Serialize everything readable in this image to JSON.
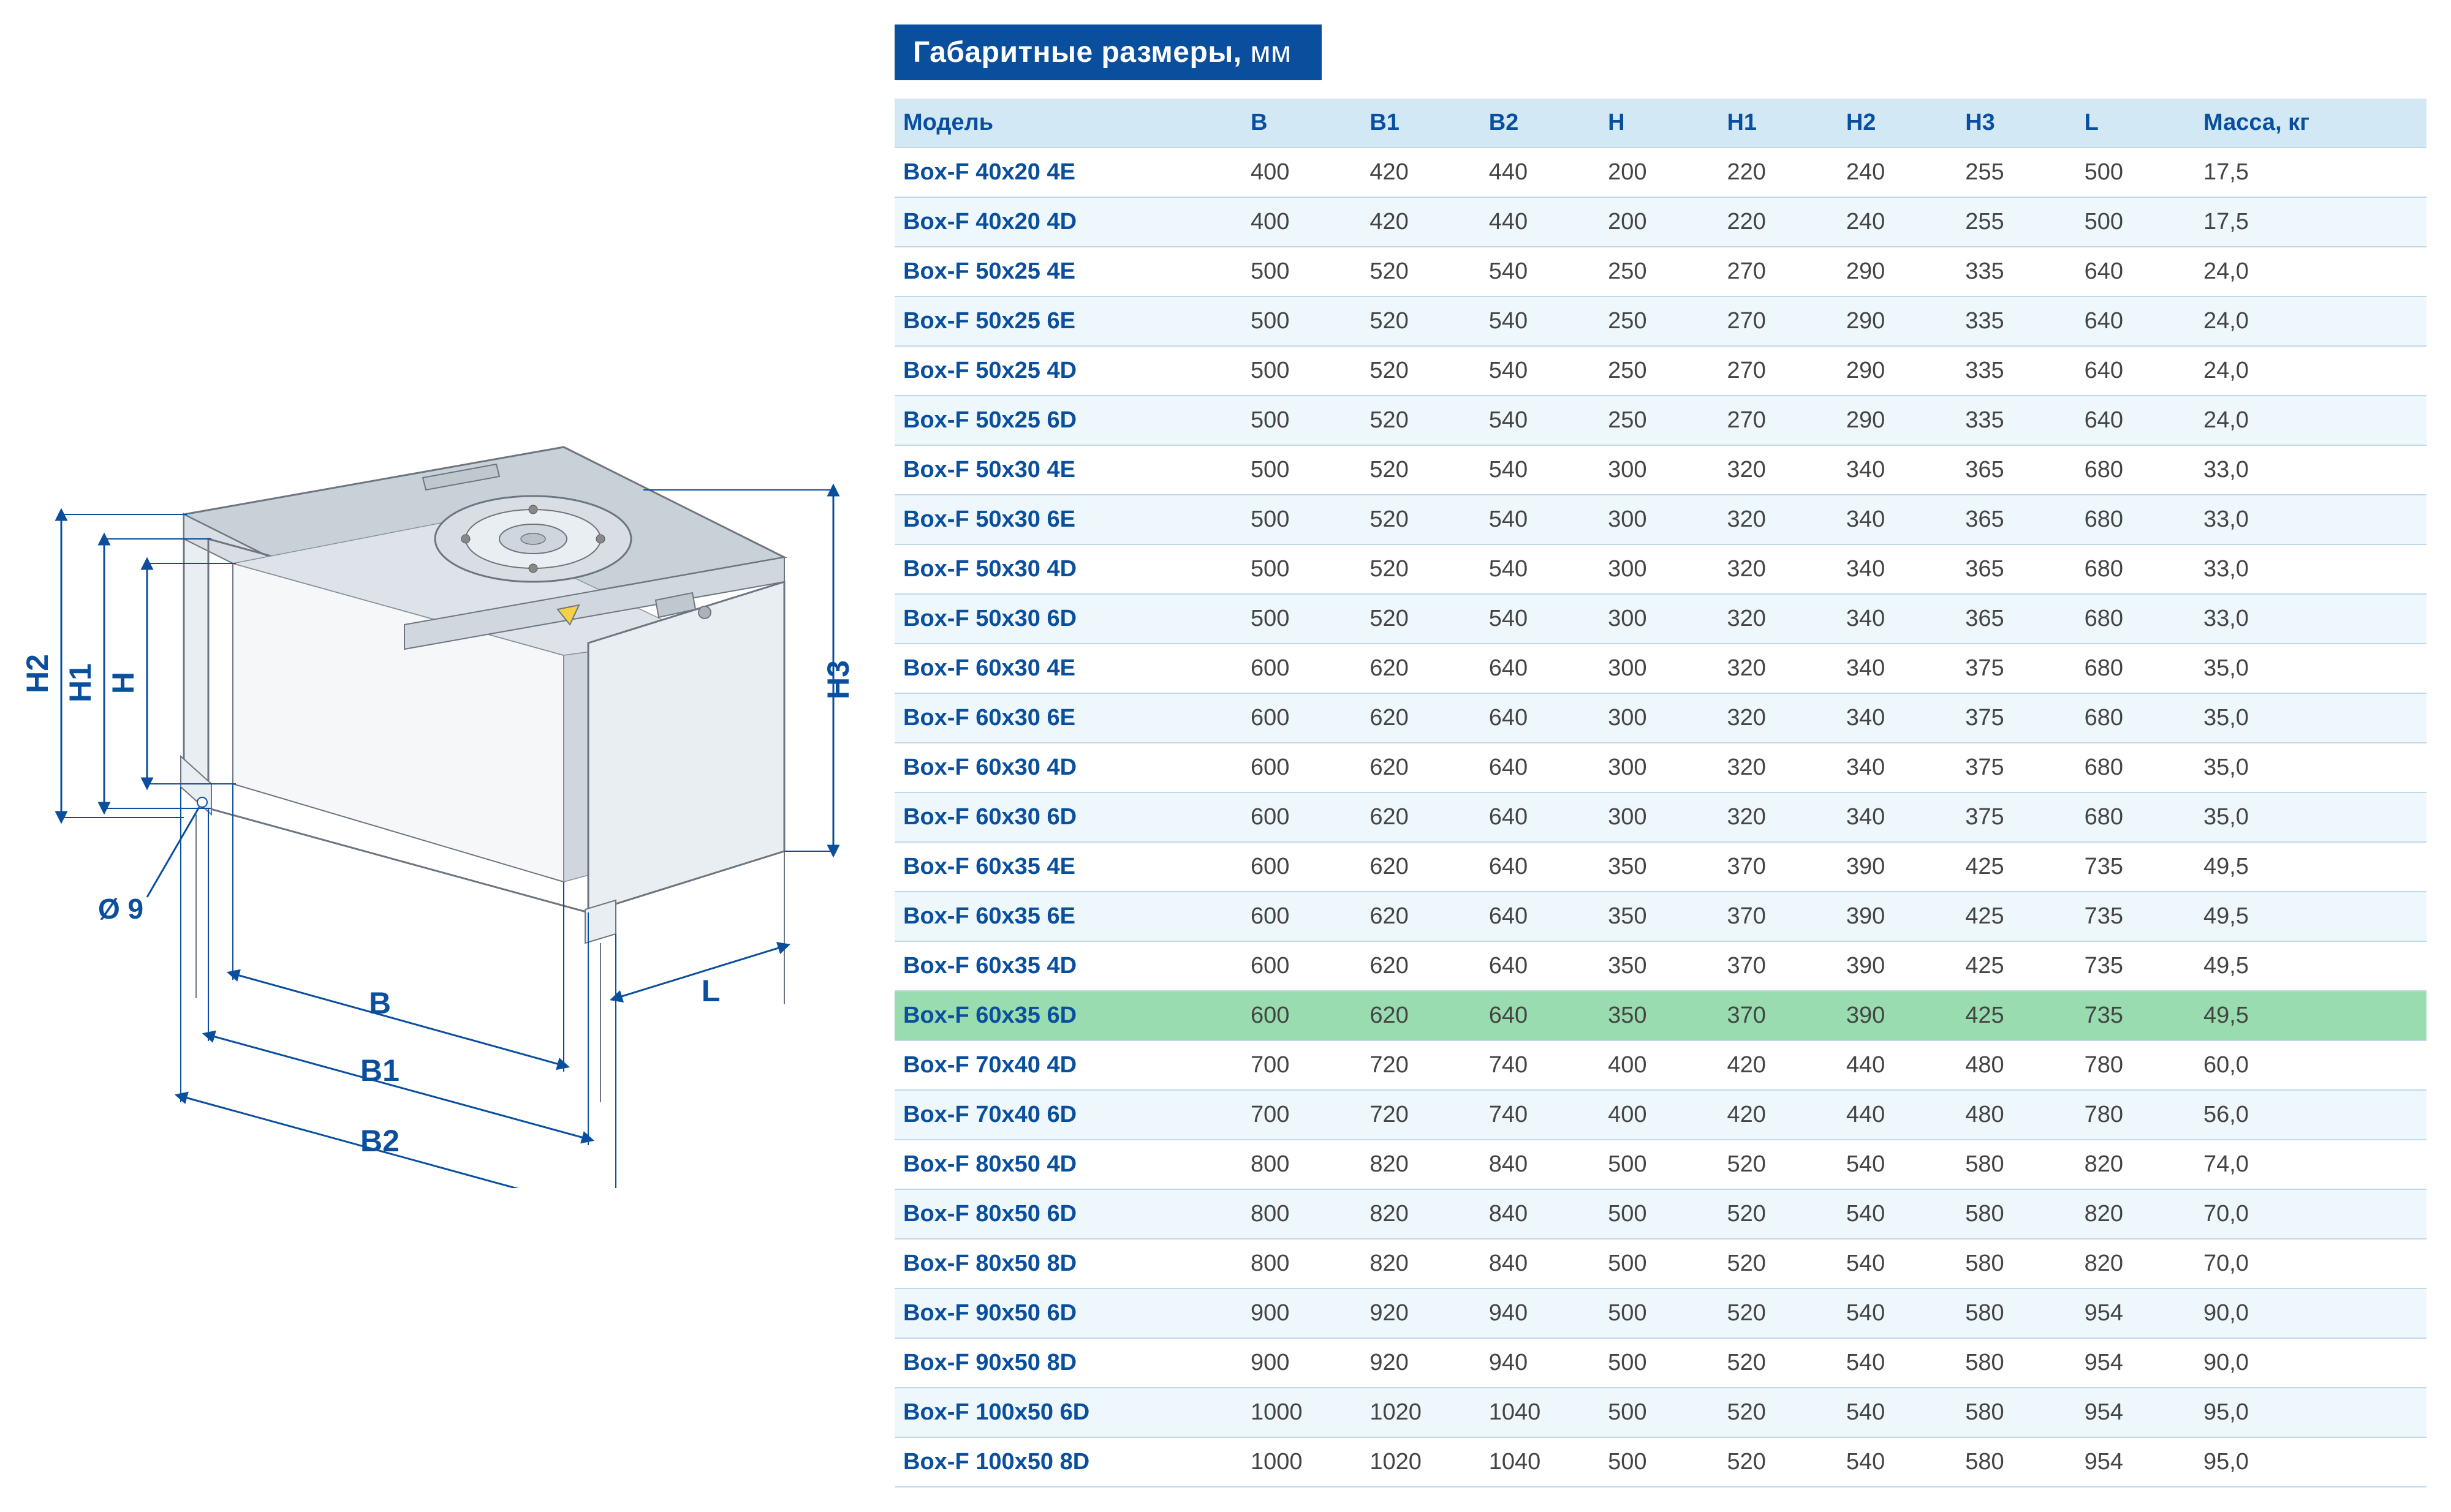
{
  "colors": {
    "titleBg": "#0a4f9e",
    "titleText": "#ffffff",
    "headerBg": "#d3e8f5",
    "headerText": "#0a4f9e",
    "modelText": "#0a4f9e",
    "cellText": "#444444",
    "rowBorder": "#bfd9e8",
    "rowAltBg": "#eef7fb",
    "rowHighlightBg": "#98dcb0",
    "diagramBox": "#e9eef2",
    "diagramTop": "#c8d0d8",
    "diagramEdge": "#6d7680",
    "dimText": "#0a4f9e",
    "dimLine": "#0a4f9e"
  },
  "title": {
    "main": "Габаритные размеры,",
    "unit": "мм"
  },
  "table": {
    "columns": [
      "Модель",
      "B",
      "B1",
      "B2",
      "H",
      "H1",
      "H2",
      "H3",
      "L",
      "Масса, кг"
    ],
    "highlightRowIndex": 17,
    "rows": [
      [
        "Box-F 40x20 4E",
        "400",
        "420",
        "440",
        "200",
        "220",
        "240",
        "255",
        "500",
        "17,5"
      ],
      [
        "Box-F 40x20 4D",
        "400",
        "420",
        "440",
        "200",
        "220",
        "240",
        "255",
        "500",
        "17,5"
      ],
      [
        "Box-F 50x25 4E",
        "500",
        "520",
        "540",
        "250",
        "270",
        "290",
        "335",
        "640",
        "24,0"
      ],
      [
        "Box-F 50x25 6E",
        "500",
        "520",
        "540",
        "250",
        "270",
        "290",
        "335",
        "640",
        "24,0"
      ],
      [
        "Box-F 50x25 4D",
        "500",
        "520",
        "540",
        "250",
        "270",
        "290",
        "335",
        "640",
        "24,0"
      ],
      [
        "Box-F 50x25 6D",
        "500",
        "520",
        "540",
        "250",
        "270",
        "290",
        "335",
        "640",
        "24,0"
      ],
      [
        "Box-F 50x30 4E",
        "500",
        "520",
        "540",
        "300",
        "320",
        "340",
        "365",
        "680",
        "33,0"
      ],
      [
        "Box-F 50x30 6E",
        "500",
        "520",
        "540",
        "300",
        "320",
        "340",
        "365",
        "680",
        "33,0"
      ],
      [
        "Box-F 50x30 4D",
        "500",
        "520",
        "540",
        "300",
        "320",
        "340",
        "365",
        "680",
        "33,0"
      ],
      [
        "Box-F 50x30 6D",
        "500",
        "520",
        "540",
        "300",
        "320",
        "340",
        "365",
        "680",
        "33,0"
      ],
      [
        "Box-F 60x30 4E",
        "600",
        "620",
        "640",
        "300",
        "320",
        "340",
        "375",
        "680",
        "35,0"
      ],
      [
        "Box-F 60x30 6E",
        "600",
        "620",
        "640",
        "300",
        "320",
        "340",
        "375",
        "680",
        "35,0"
      ],
      [
        "Box-F 60x30 4D",
        "600",
        "620",
        "640",
        "300",
        "320",
        "340",
        "375",
        "680",
        "35,0"
      ],
      [
        "Box-F 60x30 6D",
        "600",
        "620",
        "640",
        "300",
        "320",
        "340",
        "375",
        "680",
        "35,0"
      ],
      [
        "Box-F 60x35 4E",
        "600",
        "620",
        "640",
        "350",
        "370",
        "390",
        "425",
        "735",
        "49,5"
      ],
      [
        "Box-F 60x35 6E",
        "600",
        "620",
        "640",
        "350",
        "370",
        "390",
        "425",
        "735",
        "49,5"
      ],
      [
        "Box-F 60x35 4D",
        "600",
        "620",
        "640",
        "350",
        "370",
        "390",
        "425",
        "735",
        "49,5"
      ],
      [
        "Box-F 60x35 6D",
        "600",
        "620",
        "640",
        "350",
        "370",
        "390",
        "425",
        "735",
        "49,5"
      ],
      [
        "Box-F 70x40 4D",
        "700",
        "720",
        "740",
        "400",
        "420",
        "440",
        "480",
        "780",
        "60,0"
      ],
      [
        "Box-F 70x40 6D",
        "700",
        "720",
        "740",
        "400",
        "420",
        "440",
        "480",
        "780",
        "56,0"
      ],
      [
        "Box-F 80x50 4D",
        "800",
        "820",
        "840",
        "500",
        "520",
        "540",
        "580",
        "820",
        "74,0"
      ],
      [
        "Box-F 80x50 6D",
        "800",
        "820",
        "840",
        "500",
        "520",
        "540",
        "580",
        "820",
        "70,0"
      ],
      [
        "Box-F 80x50 8D",
        "800",
        "820",
        "840",
        "500",
        "520",
        "540",
        "580",
        "820",
        "70,0"
      ],
      [
        "Box-F 90x50 6D",
        "900",
        "920",
        "940",
        "500",
        "520",
        "540",
        "580",
        "954",
        "90,0"
      ],
      [
        "Box-F 90x50 8D",
        "900",
        "920",
        "940",
        "500",
        "520",
        "540",
        "580",
        "954",
        "90,0"
      ],
      [
        "Box-F 100x50 6D",
        "1000",
        "1020",
        "1040",
        "500",
        "520",
        "540",
        "580",
        "954",
        "95,0"
      ],
      [
        "Box-F 100x50 8D",
        "1000",
        "1020",
        "1040",
        "500",
        "520",
        "540",
        "580",
        "954",
        "95,0"
      ]
    ]
  },
  "diagram": {
    "labels": {
      "B": "B",
      "B1": "B1",
      "B2": "B2",
      "H": "H",
      "H1": "H1",
      "H2": "H2",
      "H3": "H3",
      "L": "L",
      "d": "Ø 9"
    }
  }
}
